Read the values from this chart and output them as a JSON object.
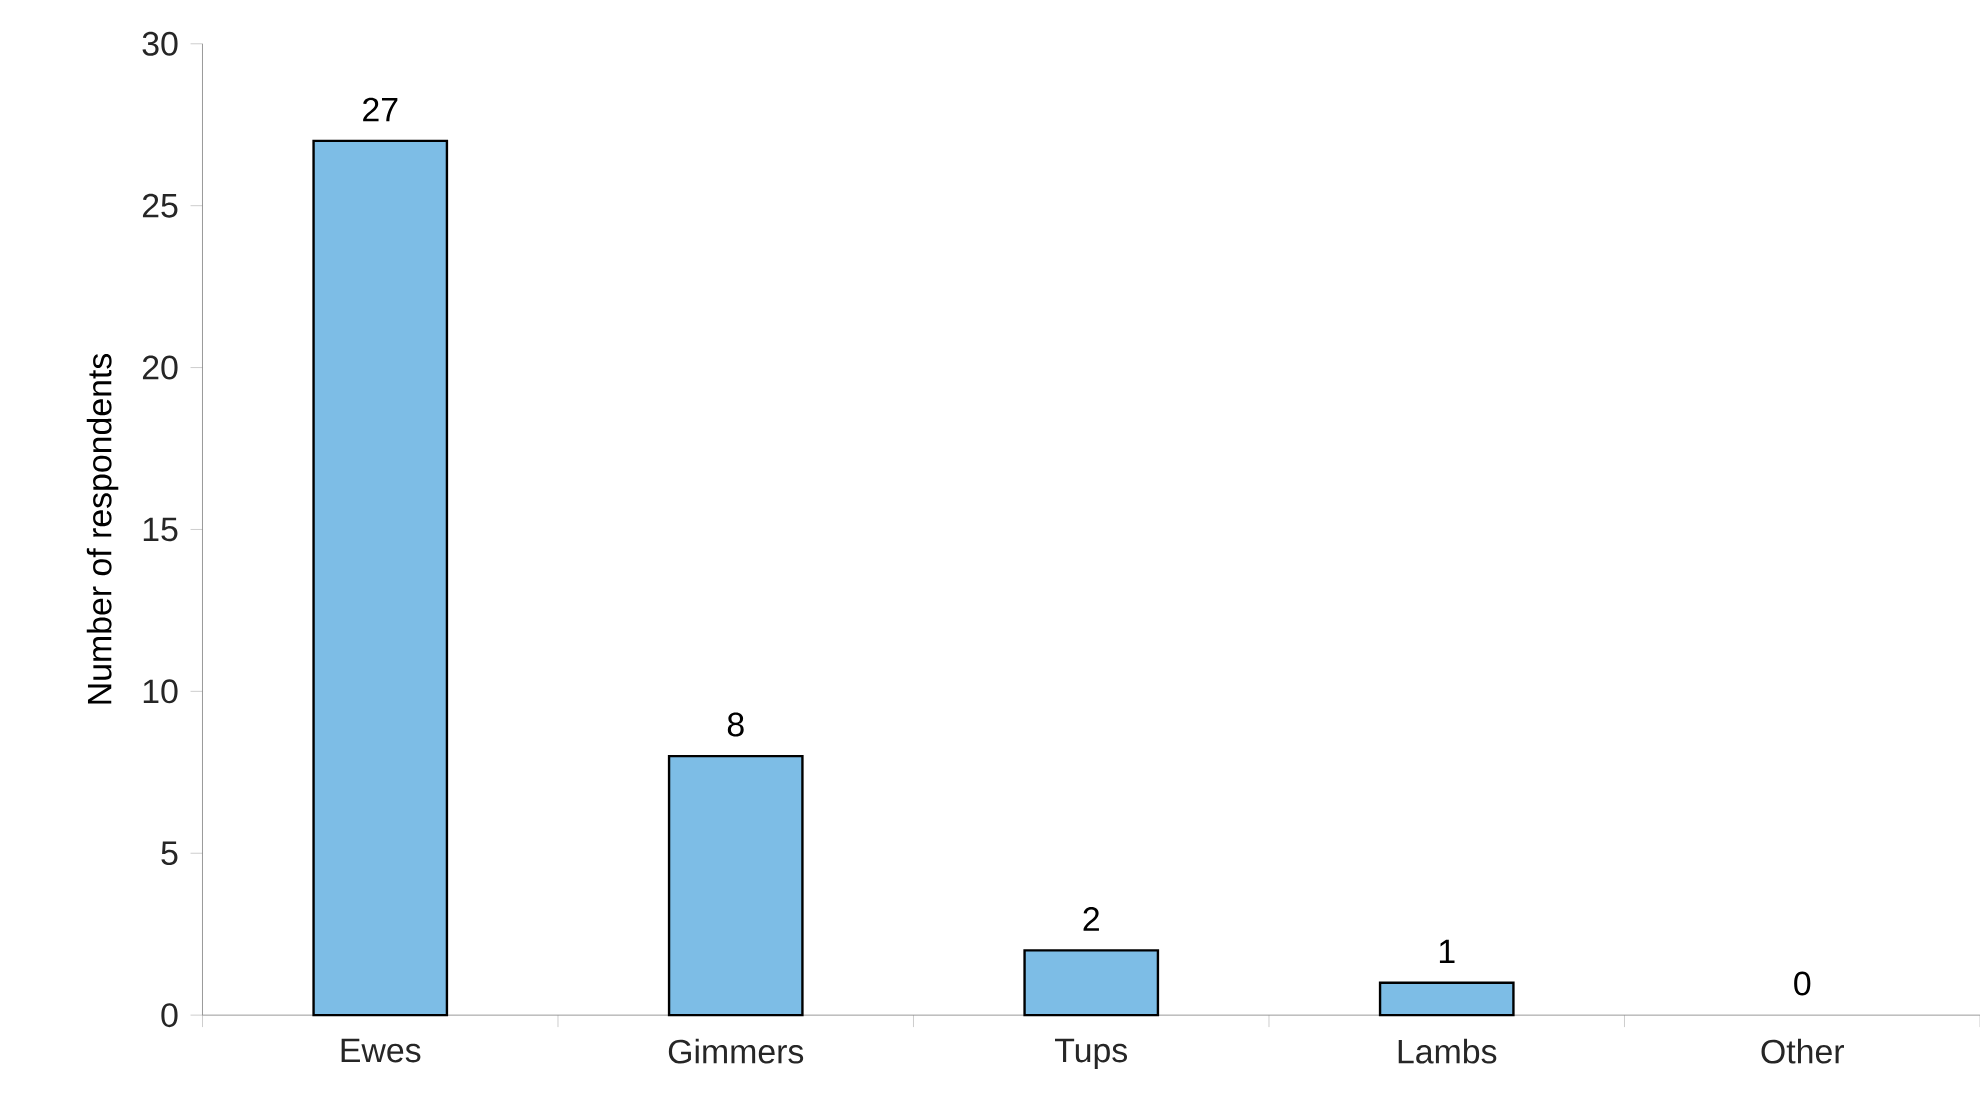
{
  "chart_data": {
    "type": "bar",
    "ylabel": "Number of respondents",
    "categories": [
      "Ewes",
      "Gimmers",
      "Tups",
      "Lambs",
      "Other"
    ],
    "values": [
      27,
      8,
      2,
      1,
      0
    ],
    "color": "#7dbde6",
    "ylim": [
      0,
      30
    ],
    "yticks": [
      0,
      5,
      10,
      15,
      20,
      25,
      30
    ],
    "grid": false,
    "data_labels": true
  }
}
